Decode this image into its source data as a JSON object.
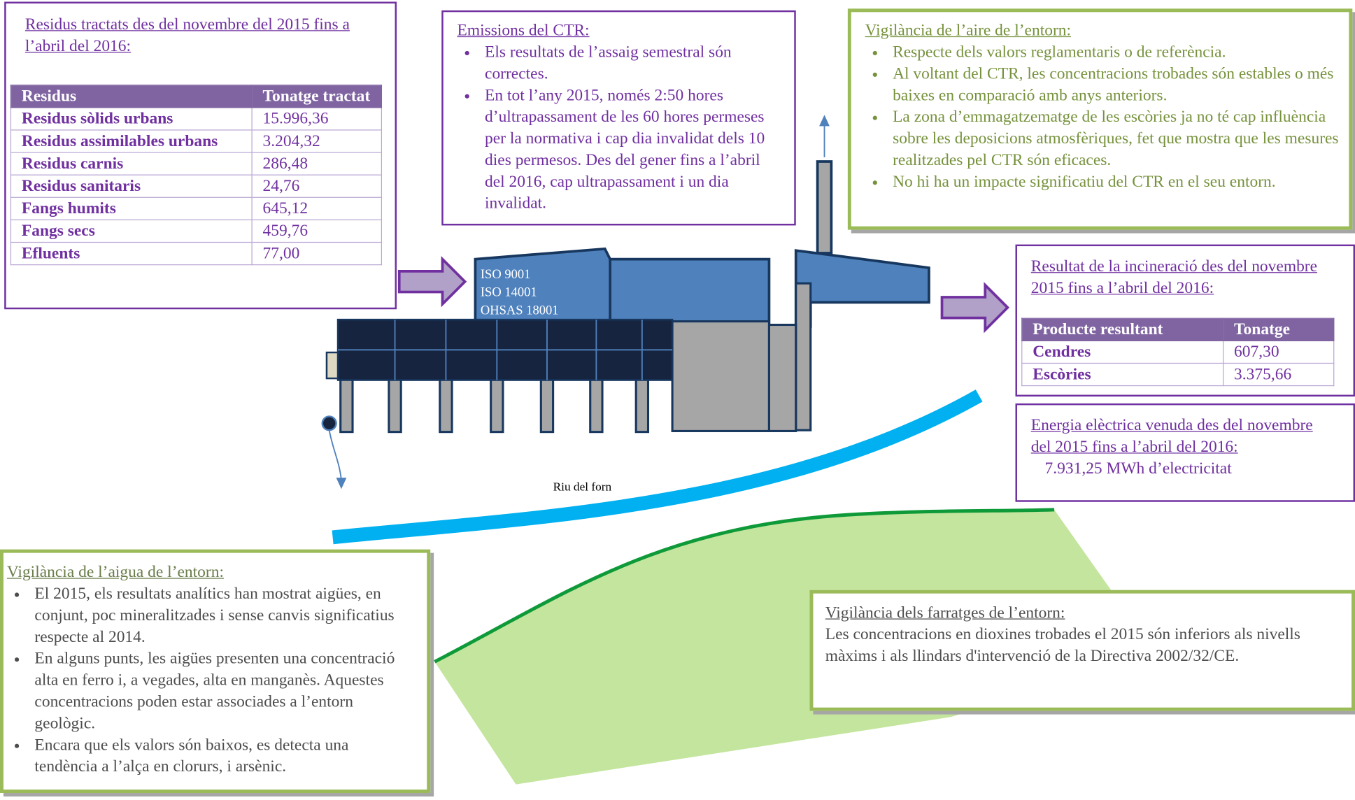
{
  "waste_box": {
    "title": "Residus tractats des del novembre del 2015 fins a l’abril del 2016:",
    "table": {
      "header": [
        "Residus",
        "Tonatge tractat"
      ],
      "rows": [
        [
          "Residus sòlids urbans",
          "15.996,36"
        ],
        [
          "Residus assimilables urbans",
          "3.204,32"
        ],
        [
          "Residus carnis",
          "286,48"
        ],
        [
          "Residus sanitaris",
          "24,76"
        ],
        [
          "Fangs humits",
          "645,12"
        ],
        [
          "Fangs secs",
          "459,76"
        ],
        [
          "Efluents",
          "77,00"
        ]
      ]
    }
  },
  "emissions_box": {
    "title": "Emissions del CTR:",
    "items": [
      "Els resultats de l’assaig semestral són correctes.",
      "En tot l’any 2015, només 2:50 hores d’ultrapassament de les 60 hores permeses per la normativa i cap dia invalidat dels 10 dies permesos. Des del gener fins a l’abril del 2016, cap ultrapassament i un dia invalidat."
    ]
  },
  "air_box": {
    "title": "Vigilància de l’aire de l’entorn:",
    "items": [
      "Respecte dels valors reglamentaris o de referència.",
      "Al voltant del CTR, les concentracions trobades són estables o més baixes en comparació amb anys anteriors.",
      "La zona d’emmagatzematge de les escòries ja no té cap influència sobre les deposicions atmosfèriques, fet que mostra que les mesures realitzades pel CTR són eficaces.",
      "No hi ha un impacte significatiu del CTR en el seu entorn."
    ]
  },
  "result_box": {
    "title": "Resultat de la incineració des del novembre 2015 fins a l’abril del 2016:",
    "table": {
      "header": [
        "Producte resultant",
        "Tonatge"
      ],
      "rows": [
        [
          "Cendres",
          "607,30"
        ],
        [
          "Escòries",
          "3.375,66"
        ]
      ]
    }
  },
  "energy_box": {
    "title": "Energia elèctrica venuda des del novembre del 2015 fins a l’abril del 2016:",
    "text": "7.931,25 MWh d’electricitat"
  },
  "plant": {
    "certifications": [
      "ISO 9001",
      "ISO 14001",
      "OHSAS 18001"
    ],
    "river_label": "Riu del forn"
  },
  "water_box": {
    "title": "Vigilància de l’aigua de l’entorn:",
    "items": [
      "El 2015, els resultats analítics han mostrat aigües, en conjunt, poc mineralitzades i sense canvis significatius respecte al 2014.",
      "En alguns punts, les aigües presenten una concentració alta en ferro i, a vegades, alta en manganès. Aquestes concentracions poden estar associades a l’entorn geològic.",
      "Encara que els valors són baixos, es detecta una tendència a l’alça en clorurs, i arsènic."
    ]
  },
  "forage_box": {
    "title": "Vigilància dels farratges de l’entorn:",
    "text": "Les concentracions en dioxines trobades el 2015 són inferiors als nivells màxims i als llindars d'intervenció de la Directiva 2002/32/CE."
  }
}
